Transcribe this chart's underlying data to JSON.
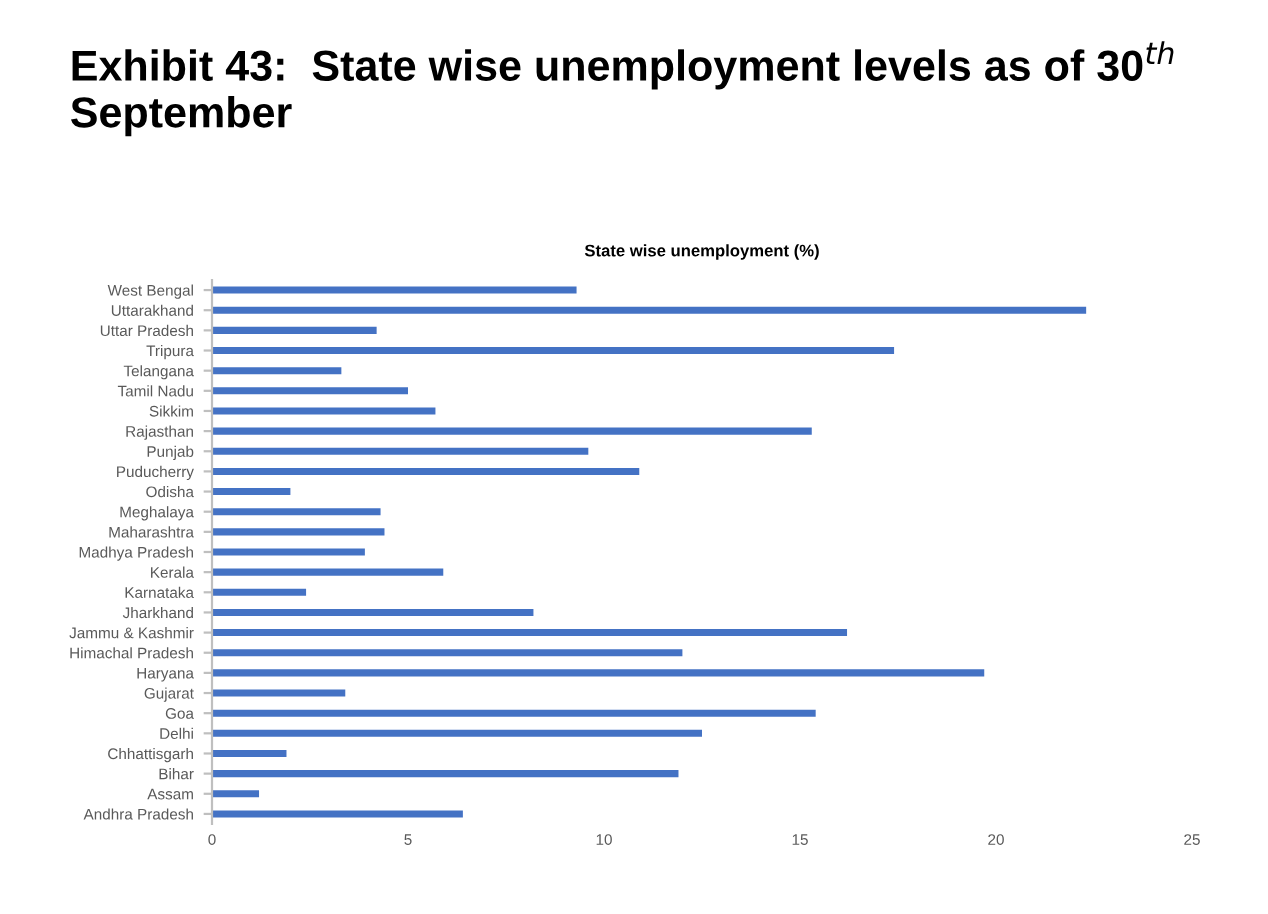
{
  "chart_data": {
    "type": "bar",
    "orientation": "horizontal",
    "title": "Exhibit 43:  State wise unemployment levels as of 30$^{th}$ September",
    "subtitle": "State wise unemployment (%)",
    "categories": [
      "West Bengal",
      "Uttarakhand",
      "Uttar Pradesh",
      "Tripura",
      "Telangana",
      "Tamil Nadu",
      "Sikkim",
      "Rajasthan",
      "Punjab",
      "Puducherry",
      "Odisha",
      "Meghalaya",
      "Maharashtra",
      "Madhya Pradesh",
      "Kerala",
      "Karnataka",
      "Jharkhand",
      "Jammu & Kashmir",
      "Himachal Pradesh",
      "Haryana",
      "Gujarat",
      "Goa",
      "Delhi",
      "Chhattisgarh",
      "Bihar",
      "Assam",
      "Andhra Pradesh"
    ],
    "values": [
      9.3,
      22.3,
      4.2,
      17.4,
      3.3,
      5.0,
      5.7,
      15.3,
      9.6,
      10.9,
      2.0,
      4.3,
      4.4,
      3.9,
      5.9,
      2.4,
      8.2,
      16.2,
      12.0,
      19.7,
      3.4,
      15.4,
      12.5,
      1.9,
      11.9,
      1.2,
      6.4
    ],
    "color": "#4472c4",
    "xlim": [
      0,
      25
    ],
    "xticks": [
      0,
      5,
      10,
      15,
      20,
      25
    ],
    "grid": false
  }
}
